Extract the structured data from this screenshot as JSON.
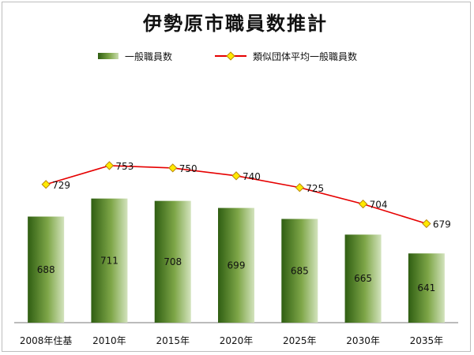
{
  "chart_data": {
    "type": "bar",
    "title": "伊勢原市職員数推計",
    "categories": [
      "2008年住基",
      "2010年",
      "2015年",
      "2020年",
      "2025年",
      "2030年",
      "2035年"
    ],
    "series": [
      {
        "name": "一般職員数",
        "type": "bar",
        "values": [
          688,
          711,
          708,
          699,
          685,
          665,
          641
        ]
      },
      {
        "name": "類似団体平均一般職員数",
        "type": "line",
        "values": [
          729,
          753,
          750,
          740,
          725,
          704,
          679
        ]
      }
    ],
    "ylim": [
      600,
      770
    ],
    "grid": false,
    "legend_position": "top",
    "colors": {
      "bar_dark": "#2f5e12",
      "bar_mid": "#7ea648",
      "bar_light": "#c9dcae",
      "line": "#e60000",
      "marker_fill": "#ffea00",
      "marker_edge": "#b8860b"
    }
  }
}
